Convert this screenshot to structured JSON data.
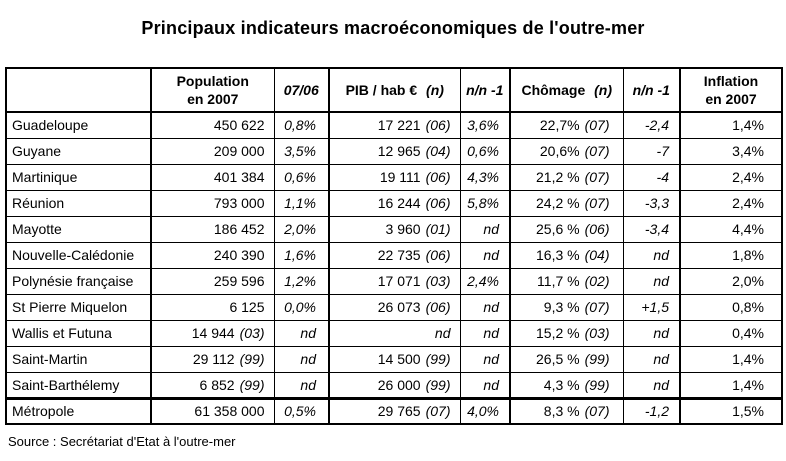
{
  "title": "Principaux indicateurs macroéconomiques de l'outre-mer",
  "source": "Source : Secrétariat d'Etat à l'outre-mer",
  "table": {
    "headers": {
      "region": "",
      "population_line1": "Population",
      "population_line2": "en 2007",
      "pop_growth": "07/06",
      "gdp_main": "PIB / hab €",
      "gdp_note": "(n)",
      "gdp_growth": "n/n -1",
      "unemployment_main": "Chômage",
      "unemployment_note": "(n)",
      "unemployment_growth": "n/n -1",
      "inflation_line1": "Inflation",
      "inflation_line2": "en 2007"
    },
    "rows": [
      {
        "name": "Guadeloupe",
        "population": {
          "value": "450 622",
          "note": ""
        },
        "pop_growth": "0,8%",
        "gdp": {
          "value": "17 221",
          "note": "(06)"
        },
        "gdp_growth": "3,6%",
        "unemployment": {
          "value": "22,7%",
          "note": "(07)"
        },
        "un_growth": "-2,4",
        "inflation": "1,4%"
      },
      {
        "name": "Guyane",
        "population": {
          "value": "209 000",
          "note": ""
        },
        "pop_growth": "3,5%",
        "gdp": {
          "value": "12 965",
          "note": "(04)"
        },
        "gdp_growth": "0,6%",
        "unemployment": {
          "value": "20,6%",
          "note": "(07)"
        },
        "un_growth": "-7",
        "inflation": "3,4%"
      },
      {
        "name": "Martinique",
        "population": {
          "value": "401 384",
          "note": ""
        },
        "pop_growth": "0,6%",
        "gdp": {
          "value": "19 111",
          "note": "(06)"
        },
        "gdp_growth": "4,3%",
        "unemployment": {
          "value": "21,2 %",
          "note": "(07)"
        },
        "un_growth": "-4",
        "inflation": "2,4%"
      },
      {
        "name": "Réunion",
        "population": {
          "value": "793 000",
          "note": ""
        },
        "pop_growth": "1,1%",
        "gdp": {
          "value": "16 244",
          "note": "(06)"
        },
        "gdp_growth": "5,8%",
        "unemployment": {
          "value": "24,2 %",
          "note": "(07)"
        },
        "un_growth": "-3,3",
        "inflation": "2,4%"
      },
      {
        "name": "Mayotte",
        "population": {
          "value": "186 452",
          "note": ""
        },
        "pop_growth": "2,0%",
        "gdp": {
          "value": "3 960",
          "note": "(01)"
        },
        "gdp_growth": "nd",
        "unemployment": {
          "value": "25,6 %",
          "note": "(06)"
        },
        "un_growth": "-3,4",
        "inflation": "4,4%"
      },
      {
        "name": "Nouvelle-Calédonie",
        "population": {
          "value": "240 390",
          "note": ""
        },
        "pop_growth": "1,6%",
        "gdp": {
          "value": "22 735",
          "note": "(06)"
        },
        "gdp_growth": "nd",
        "unemployment": {
          "value": "16,3 %",
          "note": "(04)"
        },
        "un_growth": "nd",
        "inflation": "1,8%"
      },
      {
        "name": "Polynésie française",
        "population": {
          "value": "259 596",
          "note": ""
        },
        "pop_growth": "1,2%",
        "gdp": {
          "value": "17 071",
          "note": "(03)"
        },
        "gdp_growth": "2,4%",
        "unemployment": {
          "value": "11,7 %",
          "note": "(02)"
        },
        "un_growth": "nd",
        "inflation": "2,0%"
      },
      {
        "name": "St Pierre Miquelon",
        "population": {
          "value": "6 125",
          "note": ""
        },
        "pop_growth": "0,0%",
        "gdp": {
          "value": "26 073",
          "note": "(06)"
        },
        "gdp_growth": "nd",
        "unemployment": {
          "value": "9,3 %",
          "note": "(07)"
        },
        "un_growth": "+1,5",
        "inflation": "0,8%"
      },
      {
        "name": "Wallis et Futuna",
        "population": {
          "value": "14 944",
          "note": "(03)"
        },
        "pop_growth": "nd",
        "gdp": {
          "value": "nd",
          "note": ""
        },
        "gdp_growth": "nd",
        "unemployment": {
          "value": "15,2 %",
          "note": "(03)"
        },
        "un_growth": "nd",
        "inflation": "0,4%"
      },
      {
        "name": "Saint-Martin",
        "population": {
          "value": "29 112",
          "note": "(99)"
        },
        "pop_growth": "nd",
        "gdp": {
          "value": "14 500",
          "note": "(99)"
        },
        "gdp_growth": "nd",
        "unemployment": {
          "value": "26,5 %",
          "note": "(99)"
        },
        "un_growth": "nd",
        "inflation": "1,4%"
      },
      {
        "name": "Saint-Barthélemy",
        "population": {
          "value": "6 852",
          "note": "(99)"
        },
        "pop_growth": "nd",
        "gdp": {
          "value": "26 000",
          "note": "(99)"
        },
        "gdp_growth": "nd",
        "unemployment": {
          "value": "4,3 %",
          "note": "(99)"
        },
        "un_growth": "nd",
        "inflation": "1,4%"
      },
      {
        "name": "Métropole",
        "separator": true,
        "population": {
          "value": "61 358 000",
          "note": ""
        },
        "pop_growth": "0,5%",
        "gdp": {
          "value": "29 765",
          "note": "(07)"
        },
        "gdp_growth": "4,0%",
        "unemployment": {
          "value": "8,3 %",
          "note": "(07)"
        },
        "un_growth": "-1,2",
        "inflation": "1,5%"
      }
    ]
  }
}
